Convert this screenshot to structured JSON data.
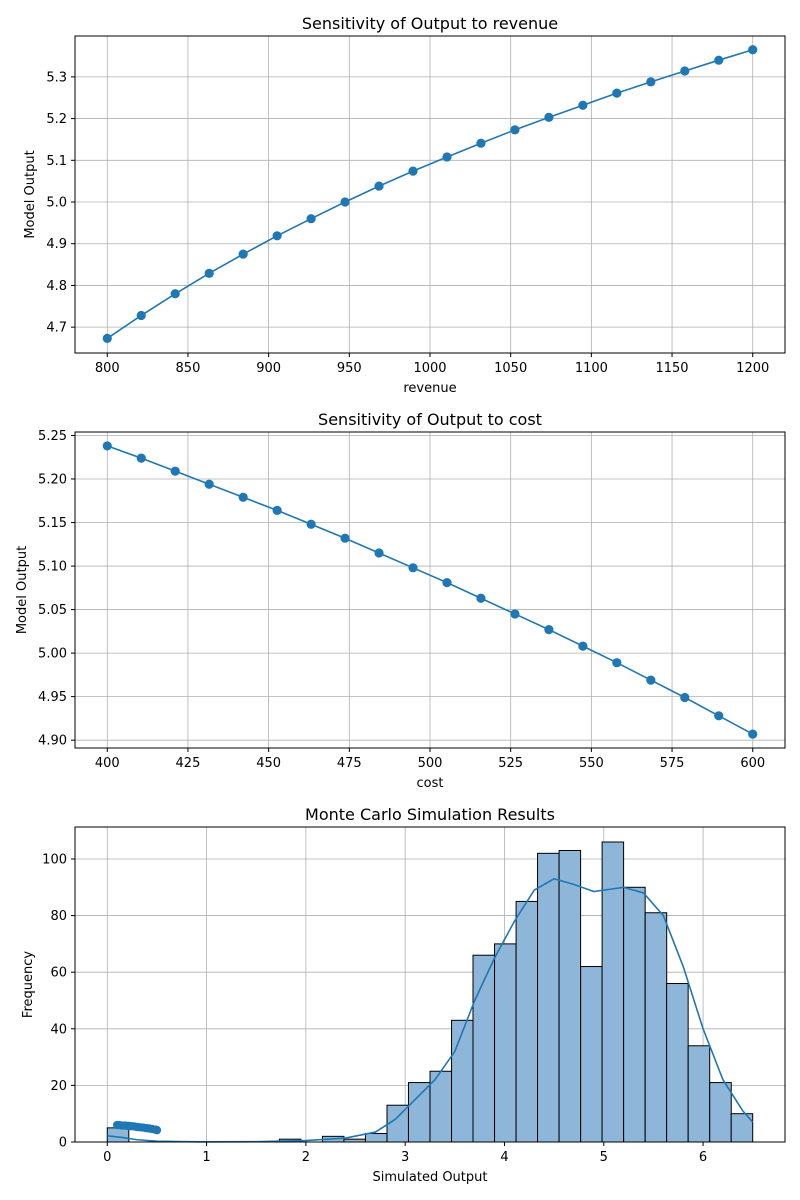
{
  "chart_data": [
    {
      "type": "line",
      "title": "Sensitivity of Output to revenue",
      "xlabel": "revenue",
      "ylabel": "Model Output",
      "xlim": [
        780,
        1220
      ],
      "ylim": [
        4.638,
        5.398
      ],
      "grid": true,
      "color": "#1f77b4",
      "xticks": [
        800,
        850,
        900,
        950,
        1000,
        1050,
        1100,
        1150,
        1200
      ],
      "yticks": [
        4.7,
        4.8,
        4.9,
        5.0,
        5.1,
        5.2,
        5.3
      ],
      "ytick_labels": [
        "4.7",
        "4.8",
        "4.9",
        "5.0",
        "5.1",
        "5.2",
        "5.3"
      ],
      "x": [
        800,
        821.05,
        842.11,
        863.16,
        884.21,
        905.26,
        926.32,
        947.37,
        968.42,
        989.47,
        1010.53,
        1031.58,
        1052.63,
        1073.68,
        1094.74,
        1115.79,
        1136.84,
        1157.89,
        1178.95,
        1200
      ],
      "y": [
        4.673,
        4.728,
        4.78,
        4.829,
        4.875,
        4.919,
        4.96,
        5.0,
        5.038,
        5.074,
        5.108,
        5.141,
        5.173,
        5.203,
        5.232,
        5.261,
        5.288,
        5.314,
        5.34,
        5.365
      ]
    },
    {
      "type": "line",
      "title": "Sensitivity of Output to cost",
      "xlabel": "cost",
      "ylabel": "Model Output",
      "xlim": [
        390,
        610
      ],
      "ylim": [
        4.891,
        5.254
      ],
      "grid": true,
      "color": "#1f77b4",
      "xticks": [
        400,
        425,
        450,
        475,
        500,
        525,
        550,
        575,
        600
      ],
      "yticks": [
        4.9,
        4.95,
        5.0,
        5.05,
        5.1,
        5.15,
        5.2,
        5.25
      ],
      "ytick_labels": [
        "4.90",
        "4.95",
        "5.00",
        "5.05",
        "5.10",
        "5.15",
        "5.20",
        "5.25"
      ],
      "x": [
        400,
        410.53,
        421.05,
        431.58,
        442.11,
        452.63,
        463.16,
        473.68,
        484.21,
        494.74,
        505.26,
        515.79,
        526.32,
        536.84,
        547.37,
        557.89,
        568.42,
        578.95,
        589.47,
        600
      ],
      "y": [
        5.238,
        5.224,
        5.209,
        5.194,
        5.179,
        5.164,
        5.148,
        5.132,
        5.115,
        5.098,
        5.081,
        5.063,
        5.045,
        5.027,
        5.008,
        4.989,
        4.969,
        4.949,
        4.928,
        4.907
      ]
    },
    {
      "type": "histogram",
      "title": "Monte Carlo Simulation Results",
      "xlabel": "Simulated Output",
      "ylabel": "Frequency",
      "xlim": [
        -0.325,
        6.825
      ],
      "ylim": [
        0,
        111.3
      ],
      "grid": true,
      "bar_color": "#8db6d8",
      "edge_color": "#000000",
      "line_color": "#1f77b4",
      "xticks": [
        0,
        1,
        2,
        3,
        4,
        5,
        6
      ],
      "yticks": [
        0,
        20,
        40,
        60,
        80,
        100
      ],
      "bin_width": 0.2167,
      "bin_starts": [
        0.0,
        0.217,
        0.433,
        0.65,
        0.867,
        1.083,
        1.3,
        1.517,
        1.733,
        1.95,
        2.167,
        2.383,
        2.6,
        2.817,
        3.033,
        3.25,
        3.467,
        3.683,
        3.9,
        4.117,
        4.333,
        4.55,
        4.767,
        4.983,
        5.2,
        5.417,
        5.633,
        5.85,
        6.067,
        6.283
      ],
      "counts": [
        5,
        0,
        0,
        0,
        0,
        0,
        0,
        0,
        1,
        0,
        2,
        1,
        3,
        13,
        21,
        25,
        43,
        66,
        70,
        85,
        102,
        103,
        62,
        106,
        90,
        81,
        56,
        34,
        21,
        10
      ],
      "kde": [
        [
          0,
          2.2
        ],
        [
          0.15,
          1.6
        ],
        [
          0.3,
          0.8
        ],
        [
          0.5,
          0.3
        ],
        [
          0.8,
          0.1
        ],
        [
          1.0,
          0.05
        ],
        [
          1.5,
          0.1
        ],
        [
          2.0,
          0.5
        ],
        [
          2.4,
          1.4
        ],
        [
          2.7,
          3.5
        ],
        [
          2.9,
          8
        ],
        [
          3.1,
          15
        ],
        [
          3.3,
          22
        ],
        [
          3.5,
          32
        ],
        [
          3.7,
          50
        ],
        [
          3.9,
          65
        ],
        [
          4.1,
          78
        ],
        [
          4.3,
          89
        ],
        [
          4.5,
          93
        ],
        [
          4.7,
          91
        ],
        [
          4.9,
          88.5
        ],
        [
          5.0,
          89
        ],
        [
          5.2,
          90
        ],
        [
          5.4,
          88
        ],
        [
          5.6,
          80
        ],
        [
          5.8,
          62
        ],
        [
          6.0,
          40
        ],
        [
          6.2,
          22
        ],
        [
          6.4,
          11
        ],
        [
          6.5,
          7
        ]
      ],
      "cluster_points": [
        [
          0.1,
          6.0
        ],
        [
          0.12,
          6.0
        ],
        [
          0.15,
          5.8
        ],
        [
          0.18,
          5.8
        ],
        [
          0.21,
          5.7
        ],
        [
          0.24,
          5.6
        ],
        [
          0.27,
          5.5
        ],
        [
          0.3,
          5.3
        ],
        [
          0.33,
          5.2
        ],
        [
          0.36,
          5.1
        ],
        [
          0.39,
          4.9
        ],
        [
          0.42,
          4.8
        ],
        [
          0.45,
          4.6
        ],
        [
          0.48,
          4.4
        ],
        [
          0.5,
          4.2
        ]
      ]
    }
  ]
}
